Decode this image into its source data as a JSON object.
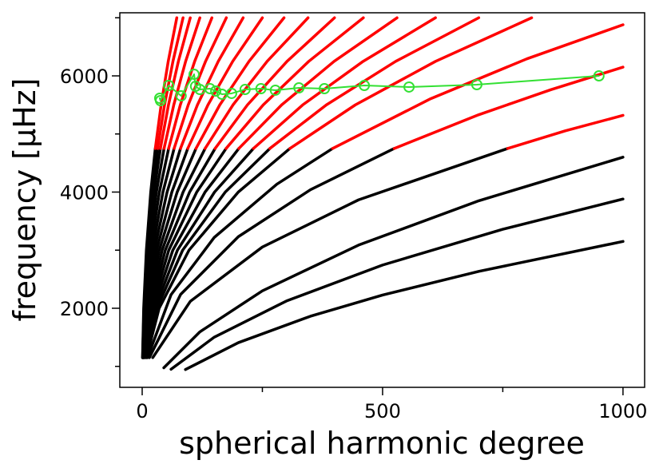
{
  "chart_data": {
    "type": "line",
    "xlabel": "spherical harmonic degree",
    "ylabel": "frequency [μHz]",
    "xlim": [
      -46.5,
      1045
    ],
    "ylim": [
      639,
      7086
    ],
    "xticks": [
      0,
      500,
      1000
    ],
    "yticks": [
      2000,
      4000,
      6000
    ],
    "xminor": [
      250,
      750
    ],
    "yminor": [
      1000,
      3000,
      5000,
      7000
    ],
    "series": [
      {
        "color": "#000000",
        "x": [
          90,
          200,
          350,
          500,
          700,
          1000
        ],
        "values": [
          945,
          1408,
          1863,
          2227,
          2635,
          3150
        ]
      },
      {
        "color": "#000000",
        "x": [
          60,
          150,
          300,
          500,
          750,
          1000
        ],
        "values": [
          950,
          1503,
          2125,
          2744,
          3360,
          3880
        ]
      },
      {
        "color": "#000000",
        "x": [
          45,
          120,
          250,
          450,
          700,
          1000
        ],
        "values": [
          976,
          1594,
          2300,
          3087,
          3850,
          4600
        ]
      },
      {
        "color": "#000000",
        "x": [
          22,
          100,
          250,
          450,
          760
        ],
        "values": [
          1150,
          2118,
          3054,
          3866,
          4750
        ]
      },
      {
        "color": "#ff0000",
        "x": [
          760,
          880,
          1000
        ],
        "values": [
          4750,
          5054,
          5320
        ]
      },
      {
        "color": "#000000",
        "x": [
          15,
          80,
          200,
          350,
          524
        ],
        "values": [
          1150,
          2239,
          3232,
          4040,
          4750
        ]
      },
      {
        "color": "#ff0000",
        "x": [
          524,
          700,
          850,
          1000
        ],
        "values": [
          4750,
          5331,
          5762,
          6150
        ]
      },
      {
        "color": "#000000",
        "x": [
          11,
          60,
          150,
          280,
          396
        ],
        "values": [
          1150,
          2232,
          3220,
          4135,
          4750
        ]
      },
      {
        "color": "#ff0000",
        "x": [
          396,
          600,
          800,
          1000
        ],
        "values": [
          4750,
          5607,
          6293,
          6880
        ]
      },
      {
        "color": "#000000",
        "x": [
          8.9,
          35.3,
          97.4,
          199.9,
          307.2
        ],
        "values": [
          1150,
          2000,
          3000,
          4000,
          4750
        ]
      },
      {
        "color": "#ff0000",
        "x": [
          307.2,
          443.2,
          610.2,
          810
        ],
        "values": [
          4750,
          5500,
          6250,
          7000
        ]
      },
      {
        "color": "#000000",
        "x": [
          7.7,
          30.5,
          84.2,
          172.8,
          265.5
        ],
        "values": [
          1150,
          2000,
          3000,
          4000,
          4750
        ]
      },
      {
        "color": "#ff0000",
        "x": [
          265.5,
          383.0,
          527.3,
          700
        ],
        "values": [
          4750,
          5500,
          6250,
          7000
        ]
      },
      {
        "color": "#000000",
        "x": [
          6.7,
          26.6,
          73.4,
          150.5,
          231.4
        ],
        "values": [
          1150,
          2000,
          3000,
          4000,
          4750
        ]
      },
      {
        "color": "#ff0000",
        "x": [
          231.4,
          333.8,
          459.5,
          610
        ],
        "values": [
          4750,
          5500,
          6250,
          7000
        ]
      },
      {
        "color": "#000000",
        "x": [
          5.8,
          23.1,
          63.8,
          130.8,
          201.0
        ],
        "values": [
          1150,
          2000,
          3000,
          4000,
          4750
        ]
      },
      {
        "color": "#ff0000",
        "x": [
          201.0,
          290.0,
          399.2,
          530
        ],
        "values": [
          4750,
          5500,
          6250,
          7000
        ]
      },
      {
        "color": "#000000",
        "x": [
          5.0,
          20.1,
          55.3,
          113.5,
          174.5
        ],
        "values": [
          1150,
          2000,
          3000,
          4000,
          4750
        ]
      },
      {
        "color": "#ff0000",
        "x": [
          174.5,
          251.7,
          346.5,
          460
        ],
        "values": [
          4750,
          5500,
          6250,
          7000
        ]
      },
      {
        "color": "#000000",
        "x": [
          4.4,
          17.5,
          48.1,
          98.7,
          151.7
        ],
        "values": [
          1150,
          2000,
          3000,
          4000,
          4750
        ]
      },
      {
        "color": "#ff0000",
        "x": [
          151.7,
          218.9,
          301.3,
          400
        ],
        "values": [
          4750,
          5500,
          6250,
          7000
        ]
      },
      {
        "color": "#000000",
        "x": [
          3.8,
          15.1,
          41.5,
          85.1,
          130.9
        ],
        "values": [
          1150,
          2000,
          3000,
          4000,
          4750
        ]
      },
      {
        "color": "#ff0000",
        "x": [
          130.9,
          188.8,
          259.9,
          345
        ],
        "values": [
          4750,
          5500,
          6250,
          7000
        ]
      },
      {
        "color": "#000000",
        "x": [
          3.2,
          12.9,
          35.5,
          72.8,
          111.9
        ],
        "values": [
          1150,
          2000,
          3000,
          4000,
          4750
        ]
      },
      {
        "color": "#ff0000",
        "x": [
          111.9,
          161.4,
          222.2,
          295
        ],
        "values": [
          4750,
          5500,
          6250,
          7000
        ]
      },
      {
        "color": "#000000",
        "x": [
          2.7,
          10.9,
          30.1,
          61.7,
          94.8
        ],
        "values": [
          1150,
          2000,
          3000,
          4000,
          4750
        ]
      },
      {
        "color": "#ff0000",
        "x": [
          94.8,
          136.8,
          188.3,
          250
        ],
        "values": [
          4750,
          5500,
          6250,
          7000
        ]
      },
      {
        "color": "#000000",
        "x": [
          2.3,
          9.2,
          25.3,
          51.8,
          79.7
        ],
        "values": [
          1150,
          2000,
          3000,
          4000,
          4750
        ]
      },
      {
        "color": "#ff0000",
        "x": [
          79.7,
          114.9,
          158.2,
          210
        ],
        "values": [
          4750,
          5500,
          6250,
          7000
        ]
      },
      {
        "color": "#000000",
        "x": [
          1.9,
          7.6,
          21.1,
          43.2,
          66.4
        ],
        "values": [
          1150,
          2000,
          3000,
          4000,
          4750
        ]
      },
      {
        "color": "#ff0000",
        "x": [
          66.4,
          95.8,
          131.8,
          175
        ],
        "values": [
          4750,
          5500,
          6250,
          7000
        ]
      },
      {
        "color": "#000000",
        "x": [
          1.6,
          6.3,
          17.4,
          35.8,
          55.0
        ],
        "values": [
          1150,
          2000,
          3000,
          4000,
          4750
        ]
      },
      {
        "color": "#ff0000",
        "x": [
          55.0,
          79.3,
          109.2,
          145
        ],
        "values": [
          4750,
          5500,
          6250,
          7000
        ]
      },
      {
        "color": "#000000",
        "x": [
          1.3,
          5.2,
          14.4,
          29.6,
          45.5
        ],
        "values": [
          1150,
          2000,
          3000,
          4000,
          4750
        ]
      },
      {
        "color": "#ff0000",
        "x": [
          45.5,
          65.7,
          90.4,
          120
        ],
        "values": [
          4750,
          5500,
          6250,
          7000
        ]
      },
      {
        "color": "#000000",
        "x": [
          1.1,
          4.4,
          12.0,
          24.7,
          37.9
        ],
        "values": [
          1150,
          2000,
          3000,
          4000,
          4750
        ]
      },
      {
        "color": "#ff0000",
        "x": [
          37.9,
          54.7,
          75.3,
          100
        ],
        "values": [
          4750,
          5500,
          6250,
          7000
        ]
      },
      {
        "color": "#000000",
        "x": [
          0.9,
          3.7,
          10.2,
          21.0,
          32.2
        ],
        "values": [
          1150,
          2000,
          3000,
          4000,
          4750
        ]
      },
      {
        "color": "#ff0000",
        "x": [
          32.2,
          46.5,
          64.0,
          85
        ],
        "values": [
          4750,
          5500,
          6250,
          7000
        ]
      },
      {
        "color": "#000000",
        "x": [
          0.8,
          3.1,
          8.7,
          17.8,
          27.3
        ],
        "values": [
          1150,
          2000,
          3000,
          4000,
          4750
        ]
      },
      {
        "color": "#ff0000",
        "x": [
          27.3,
          39.4,
          54.2,
          72
        ],
        "values": [
          4750,
          5500,
          6250,
          7000
        ]
      },
      {
        "color": "#33e033",
        "marker": "circle",
        "x": [
          36.5,
          38,
          55,
          81,
          108,
          111,
          120,
          141,
          153,
          166,
          186,
          214,
          247,
          277,
          326,
          379,
          462,
          555,
          696,
          950
        ],
        "values": [
          5615,
          5574,
          5835,
          5656,
          6027,
          5821,
          5766,
          5780,
          5739,
          5684,
          5698,
          5766,
          5780,
          5753,
          5794,
          5780,
          5835,
          5808,
          5849,
          6000
        ]
      }
    ]
  }
}
